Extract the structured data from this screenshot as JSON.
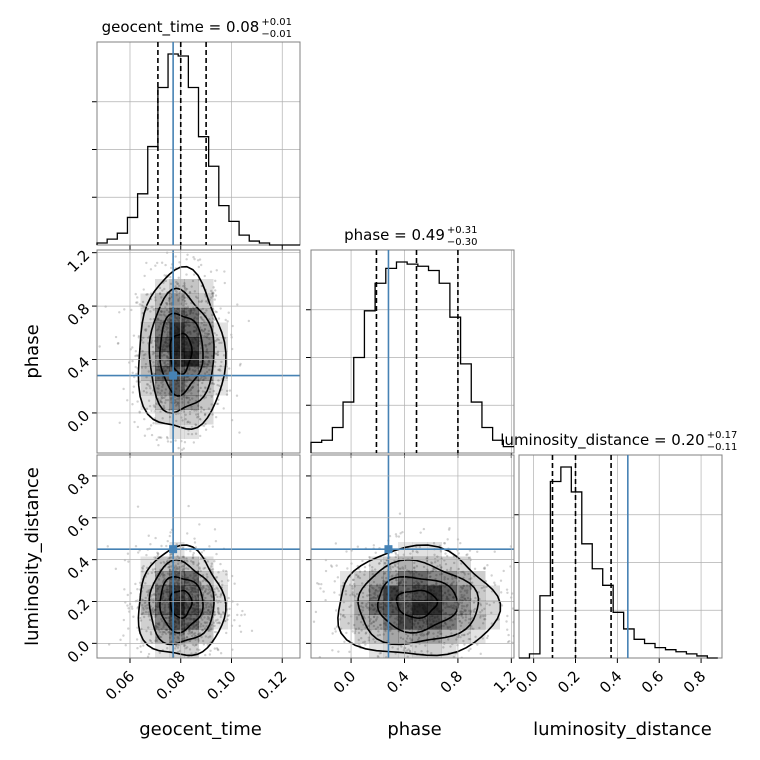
{
  "chart_data": {
    "type": "corner",
    "parameters": [
      "geocent_time",
      "phase",
      "luminosity_distance"
    ],
    "truths": {
      "geocent_time": 0.077,
      "phase": 0.28,
      "luminosity_distance": 0.45
    },
    "colors": {
      "truth": "#4682b4",
      "hist": "#000000",
      "grid": "#b0b0b0",
      "density": "#000000",
      "frame": "#808080"
    },
    "grid": true,
    "titles": [
      {
        "param": "geocent_time",
        "text": "geocent_time = 0.08",
        "plus": "+0.01",
        "minus": "−0.01"
      },
      {
        "param": "phase",
        "text": "phase = 0.49",
        "plus": "+0.31",
        "minus": "−0.30"
      },
      {
        "param": "luminosity_distance",
        "text": "luminosity_distance = 0.20",
        "plus": "+0.17",
        "minus": "−0.11"
      }
    ],
    "axes": {
      "geocent_time": {
        "label": "geocent_time",
        "range": [
          0.047,
          0.127
        ],
        "ticks": [
          0.06,
          0.08,
          0.1,
          0.12
        ],
        "tick_labels": [
          "0.06",
          "0.08",
          "0.10",
          "0.12"
        ]
      },
      "phase": {
        "label": "phase",
        "range": [
          -0.3,
          1.22
        ],
        "ticks": [
          0.0,
          0.4,
          0.8,
          1.2
        ],
        "tick_labels": [
          "0.0",
          "0.4",
          "0.8",
          "1.2"
        ]
      },
      "luminosity_distance": {
        "label": "luminosity_distance",
        "range": [
          -0.07,
          0.9
        ],
        "ticks": [
          0.0,
          0.2,
          0.4,
          0.6,
          0.8
        ],
        "tick_labels": [
          "0.0",
          "0.2",
          "0.4",
          "0.6",
          "0.8"
        ]
      }
    },
    "histograms": {
      "geocent_time": {
        "bin_edges": [
          0.047,
          0.051,
          0.055,
          0.059,
          0.063,
          0.067,
          0.071,
          0.075,
          0.079,
          0.083,
          0.087,
          0.091,
          0.095,
          0.099,
          0.103,
          0.107,
          0.111,
          0.115,
          0.119,
          0.123,
          0.127
        ],
        "counts": [
          1,
          3,
          6,
          14,
          26,
          50,
          80,
          97,
          96,
          80,
          55,
          40,
          20,
          12,
          5,
          2,
          1,
          0,
          0,
          0
        ],
        "quantiles": [
          0.071,
          0.08,
          0.09
        ]
      },
      "phase": {
        "bin_edges": [
          -0.3,
          -0.22,
          -0.14,
          -0.06,
          0.02,
          0.1,
          0.18,
          0.26,
          0.34,
          0.42,
          0.5,
          0.58,
          0.66,
          0.74,
          0.82,
          0.9,
          0.98,
          1.06,
          1.14,
          1.22
        ],
        "counts": [
          5,
          6,
          12,
          24,
          45,
          67,
          80,
          87,
          90,
          89,
          88,
          86,
          80,
          64,
          42,
          24,
          12,
          6,
          3
        ],
        "quantiles": [
          0.19,
          0.49,
          0.8
        ]
      },
      "luminosity_distance": {
        "bin_edges": [
          -0.07,
          -0.02,
          0.03,
          0.08,
          0.13,
          0.18,
          0.23,
          0.28,
          0.33,
          0.38,
          0.43,
          0.48,
          0.53,
          0.58,
          0.63,
          0.68,
          0.73,
          0.78,
          0.83,
          0.88
        ],
        "counts": [
          0,
          2,
          30,
          85,
          92,
          80,
          55,
          43,
          35,
          22,
          14,
          9,
          7,
          5,
          4,
          3,
          2,
          1,
          0
        ],
        "quantiles": [
          0.09,
          0.2,
          0.37
        ]
      }
    },
    "contour_levels_sigma": [
      0.5,
      1.0,
      1.5,
      2.0
    ],
    "density_2d": [
      {
        "x": "geocent_time",
        "y": "phase",
        "center": [
          0.08,
          0.45
        ],
        "spread": [
          0.0085,
          0.3
        ],
        "n_points": 1200
      },
      {
        "x": "geocent_time",
        "y": "luminosity_distance",
        "center": [
          0.08,
          0.19
        ],
        "spread": [
          0.0085,
          0.13
        ],
        "n_points": 1200
      },
      {
        "x": "phase",
        "y": "luminosity_distance",
        "center": [
          0.49,
          0.19
        ],
        "spread": [
          0.3,
          0.13
        ],
        "n_points": 1200
      }
    ]
  }
}
